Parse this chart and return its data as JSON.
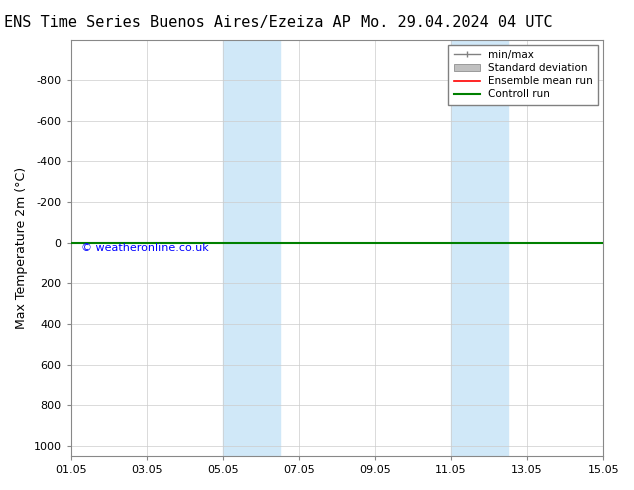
{
  "title_left": "ENS Time Series Buenos Aires/Ezeiza AP",
  "title_right": "Mo. 29.04.2024 04 UTC",
  "ylabel": "Max Temperature 2m (°C)",
  "ylim": [
    -1000,
    1050
  ],
  "yticks": [
    -800,
    -600,
    -400,
    -200,
    0,
    200,
    400,
    600,
    800,
    1000
  ],
  "xlim_start": "2024-05-01",
  "xlim_end": "2024-05-15",
  "xtick_labels": [
    "01.05",
    "03.05",
    "05.05",
    "07.05",
    "09.05",
    "11.05",
    "13.05",
    "15.05"
  ],
  "xtick_positions": [
    0,
    2,
    4,
    6,
    8,
    10,
    12,
    14
  ],
  "blue_bands": [
    {
      "x_start": 4.0,
      "x_end": 5.5
    },
    {
      "x_start": 10.0,
      "x_end": 11.5
    }
  ],
  "horizontal_line_y": 0,
  "ensemble_mean_color": "#ff0000",
  "control_run_color": "#008000",
  "min_max_color": "#808080",
  "std_dev_color": "#c0c0c0",
  "band_color": "#d0e8f8",
  "background_color": "#ffffff",
  "watermark_text": "© weatheronline.co.uk",
  "watermark_color": "#0000ff",
  "legend_entries": [
    "min/max",
    "Standard deviation",
    "Ensemble mean run",
    "Controll run"
  ],
  "title_fontsize": 11,
  "axis_fontsize": 9,
  "tick_fontsize": 8
}
